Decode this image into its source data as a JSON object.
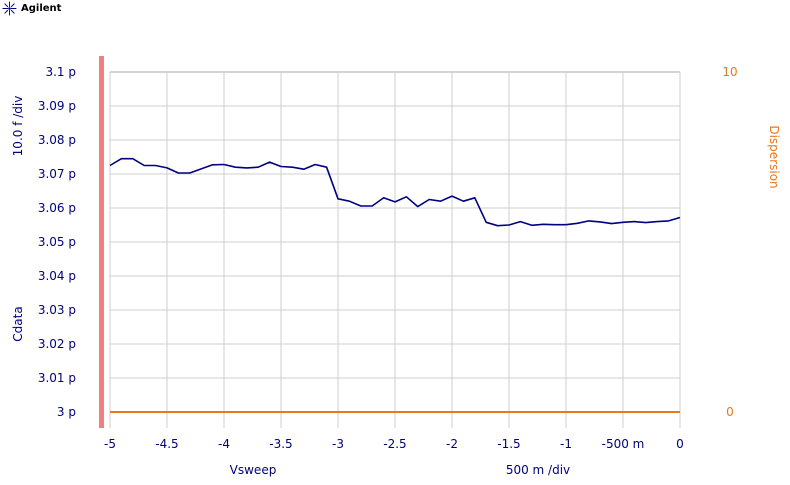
{
  "brand": {
    "name": "Agilent",
    "logo_icon": "agilent-spark-icon"
  },
  "chart_data": {
    "type": "line",
    "title": "",
    "xlabel": "Vsweep",
    "x_scale_label": "500 m /div",
    "ylabel": "Cdata",
    "y_scale_label": "10.0 f /div",
    "y2label": "Dispersion",
    "xlim": [
      -5,
      0
    ],
    "ylim": [
      3.0,
      3.1
    ],
    "y2lim": [
      0,
      10
    ],
    "x_ticks": [
      {
        "v": -5,
        "label": "-5"
      },
      {
        "v": -4.5,
        "label": "-4.5"
      },
      {
        "v": -4,
        "label": "-4"
      },
      {
        "v": -3.5,
        "label": "-3.5"
      },
      {
        "v": -3,
        "label": "-3"
      },
      {
        "v": -2.5,
        "label": "-2.5"
      },
      {
        "v": -2,
        "label": "-2"
      },
      {
        "v": -1.5,
        "label": "-1.5"
      },
      {
        "v": -1,
        "label": "-1"
      },
      {
        "v": -0.5,
        "label": "-500 m"
      },
      {
        "v": 0,
        "label": "0"
      }
    ],
    "y_ticks": [
      {
        "v": 3.0,
        "label": "3 p"
      },
      {
        "v": 3.01,
        "label": "3.01 p"
      },
      {
        "v": 3.02,
        "label": "3.02 p"
      },
      {
        "v": 3.03,
        "label": "3.03 p"
      },
      {
        "v": 3.04,
        "label": "3.04 p"
      },
      {
        "v": 3.05,
        "label": "3.05 p"
      },
      {
        "v": 3.06,
        "label": "3.06 p"
      },
      {
        "v": 3.07,
        "label": "3.07 p"
      },
      {
        "v": 3.08,
        "label": "3.08 p"
      },
      {
        "v": 3.09,
        "label": "3.09 p"
      },
      {
        "v": 3.1,
        "label": "3.1 p"
      }
    ],
    "y2_ticks": [
      {
        "v": 10,
        "label": "10"
      },
      {
        "v": 0,
        "label": "0"
      }
    ],
    "grid": true,
    "colors": {
      "cdata": "#000080",
      "dispersion": "#e8781e",
      "left_axis_bar": "#f08080",
      "grid": "#cfcfcf",
      "top_grid": "#a8a8a8"
    },
    "series": [
      {
        "axis": "left",
        "color": "#000080",
        "x": [
          -5,
          -4.9,
          -4.8,
          -4.7,
          -4.6,
          -4.5,
          -4.4,
          -4.3,
          -4.2,
          -4.1,
          -4.0,
          -3.9,
          -3.8,
          -3.7,
          -3.6,
          -3.5,
          -3.4,
          -3.3,
          -3.2,
          -3.1,
          -3.0,
          -2.9,
          -2.8,
          -2.7,
          -2.6,
          -2.5,
          -2.4,
          -2.3,
          -2.2,
          -2.1,
          -2.0,
          -1.9,
          -1.8,
          -1.7,
          -1.6,
          -1.5,
          -1.4,
          -1.3,
          -1.2,
          -1.1,
          -1.0,
          -0.9,
          -0.8,
          -0.7,
          -0.6,
          -0.5,
          -0.4,
          -0.3,
          -0.2,
          -0.1,
          0.0
        ],
        "y": [
          3.0725,
          3.0745,
          3.0745,
          3.0725,
          3.0725,
          3.0718,
          3.0703,
          3.0703,
          3.0715,
          3.0727,
          3.0728,
          3.072,
          3.0718,
          3.072,
          3.0735,
          3.0722,
          3.072,
          3.0714,
          3.0728,
          3.072,
          3.0627,
          3.062,
          3.0606,
          3.0606,
          3.063,
          3.0618,
          3.0633,
          3.0604,
          3.0625,
          3.062,
          3.0635,
          3.062,
          3.063,
          3.0558,
          3.0548,
          3.055,
          3.056,
          3.0549,
          3.0552,
          3.0551,
          3.0551,
          3.0555,
          3.0562,
          3.0559,
          3.0554,
          3.0558,
          3.056,
          3.0557,
          3.056,
          3.0562,
          3.0572
        ]
      },
      {
        "axis": "right",
        "color": "#e8781e",
        "x": [
          -5,
          0
        ],
        "y": [
          0,
          0
        ]
      }
    ]
  }
}
